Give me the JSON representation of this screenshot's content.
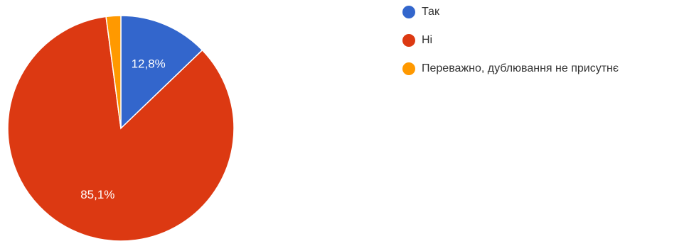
{
  "chart_data": {
    "type": "pie",
    "slices": [
      {
        "name": "Так",
        "value": 12.8,
        "label": "12,8%",
        "color": "#3366cc"
      },
      {
        "name": "Ні",
        "value": 85.1,
        "label": "85,1%",
        "color": "#dc3912"
      },
      {
        "name": "Переважно, дублювання не присутнє",
        "value": 2.1,
        "label": "",
        "color": "#ff9900"
      }
    ],
    "legend_position": "top-right",
    "start_angle_deg": 90,
    "direction": "clockwise"
  }
}
